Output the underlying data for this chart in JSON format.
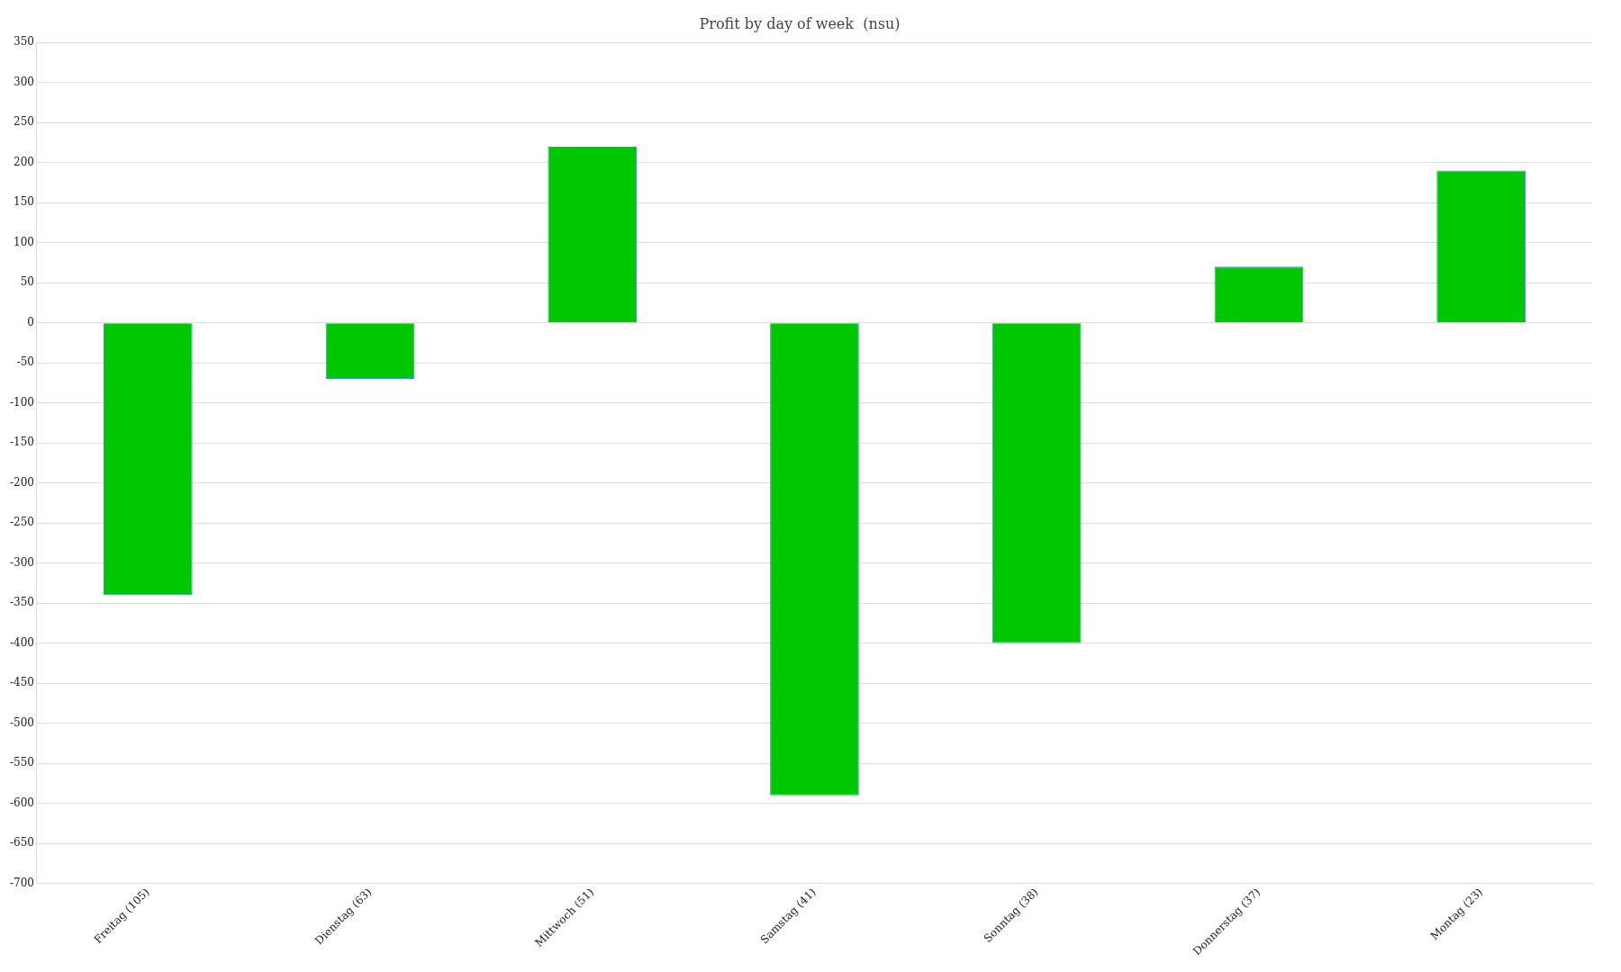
{
  "chart_data": {
    "type": "bar",
    "title": "Profit by day of week  (nsu)",
    "categories": [
      "Freitag (105)",
      "Dienstag (63)",
      "Mittwoch (51)",
      "Samstag (41)",
      "Sonntag (38)",
      "Donnerstag (37)",
      "Montag (23)"
    ],
    "values": [
      -340,
      -70,
      220,
      -590,
      -400,
      70,
      190
    ],
    "color": "#00c800",
    "ylim": [
      -700,
      350
    ],
    "yticks": [
      -700,
      -650,
      -600,
      -550,
      -500,
      -450,
      -400,
      -350,
      -300,
      -250,
      -200,
      -150,
      -100,
      -50,
      0,
      50,
      100,
      150,
      200,
      250,
      300,
      350
    ],
    "grid": "y",
    "legend": false
  }
}
